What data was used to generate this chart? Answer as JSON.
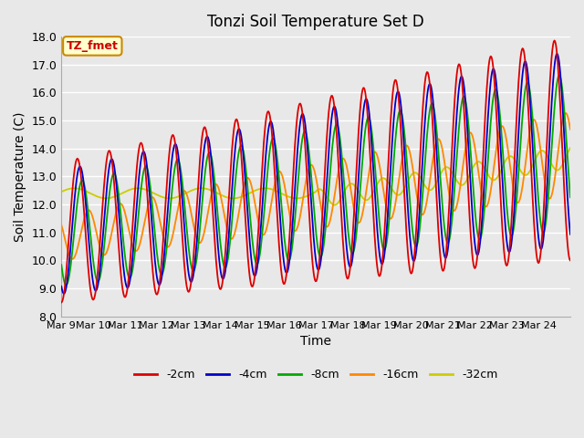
{
  "title": "Tonzi Soil Temperature Set D",
  "xlabel": "Time",
  "ylabel": "Soil Temperature (C)",
  "ylim": [
    8.0,
    18.0
  ],
  "yticks": [
    8.0,
    9.0,
    10.0,
    11.0,
    12.0,
    13.0,
    14.0,
    15.0,
    16.0,
    17.0,
    18.0
  ],
  "xtick_labels": [
    "Mar 9",
    "Mar 10",
    "Mar 11",
    "Mar 12",
    "Mar 13",
    "Mar 14",
    "Mar 15",
    "Mar 16",
    "Mar 17",
    "Mar 18",
    "Mar 19",
    "Mar 20",
    "Mar 21",
    "Mar 22",
    "Mar 23",
    "Mar 24"
  ],
  "legend_entries": [
    "-2cm",
    "-4cm",
    "-8cm",
    "-16cm",
    "-32cm"
  ],
  "legend_colors": [
    "#dd0000",
    "#0000cc",
    "#00aa00",
    "#ff8800",
    "#cccc00"
  ],
  "line_colors": [
    "#dd0000",
    "#0000cc",
    "#00aa00",
    "#ff8800",
    "#cccc00"
  ],
  "annotation_text": "TZ_fmet",
  "annotation_bg": "#ffffcc",
  "annotation_border": "#cc8800",
  "background_color": "#e8e8e8"
}
